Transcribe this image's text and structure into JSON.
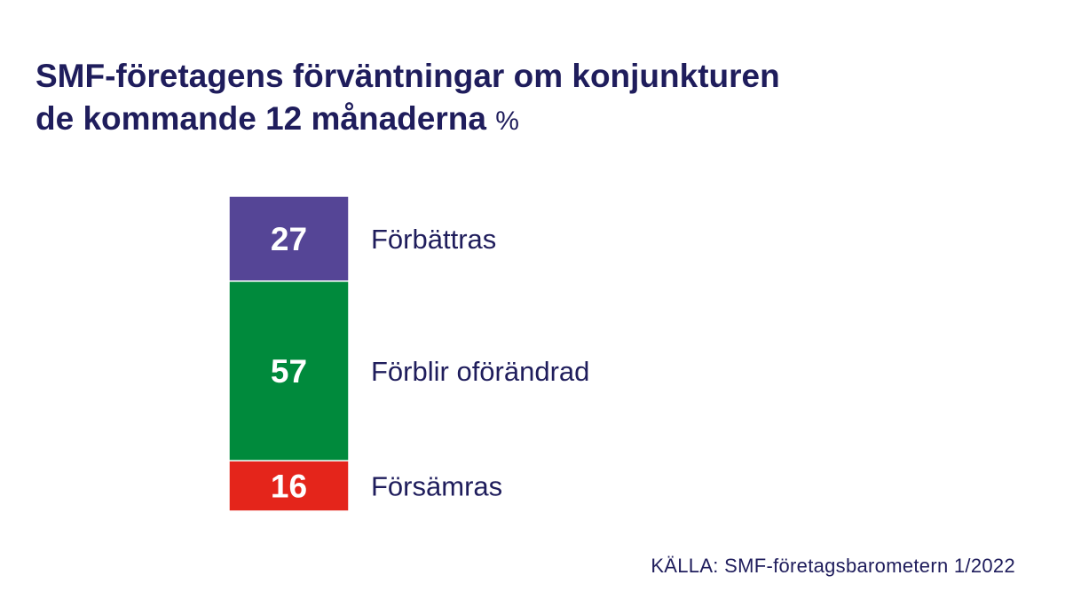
{
  "chart_data": {
    "type": "bar",
    "stacked": true,
    "title_line1": "SMF-företagens förväntningar om konjunkturen",
    "title_line2": "de kommande 12 månaderna",
    "unit": "%",
    "categories": [
      "Förbättras",
      "Förblir oförändrad",
      "Försämras"
    ],
    "values": [
      27,
      57,
      16
    ],
    "colors": [
      "#554596",
      "#008a3c",
      "#e4251b"
    ],
    "text_color": "#1f1d5c",
    "source": "KÄLLA: SMF-företagsbarometern 1/2022"
  }
}
